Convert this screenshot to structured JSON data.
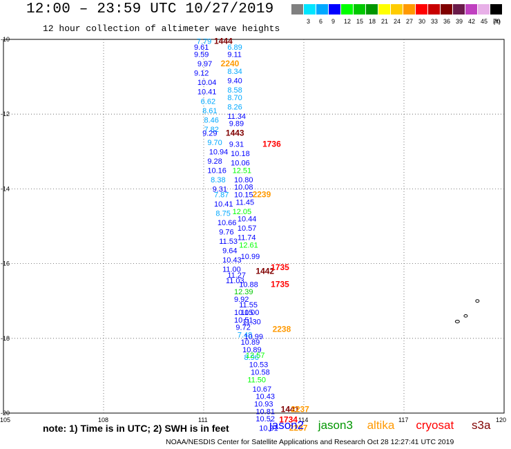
{
  "header": {
    "title": "12:00 – 23:59 UTC 10/27/2019",
    "subtitle": "12 hour collection of altimeter wave heights"
  },
  "legend": {
    "unit": "(ft)",
    "entries": [
      {
        "label": "",
        "color": "#808080"
      },
      {
        "label": "3",
        "color": "#00e5ff"
      },
      {
        "label": "6",
        "color": "#00a8ff"
      },
      {
        "label": "9",
        "color": "#0000ff"
      },
      {
        "label": "12",
        "color": "#00ff00"
      },
      {
        "label": "15",
        "color": "#00c800"
      },
      {
        "label": "18",
        "color": "#009600"
      },
      {
        "label": "21",
        "color": "#ffff00"
      },
      {
        "label": "24",
        "color": "#ffcc00"
      },
      {
        "label": "27",
        "color": "#ff9900"
      },
      {
        "label": "30",
        "color": "#ff0000"
      },
      {
        "label": "33",
        "color": "#c80000"
      },
      {
        "label": "36",
        "color": "#800000"
      },
      {
        "label": "39",
        "color": "#6a1b4a"
      },
      {
        "label": "42",
        "color": "#c040c0"
      },
      {
        "label": "45",
        "color": "#e8b0e8"
      },
      {
        "label": "70",
        "color": "#000000"
      }
    ]
  },
  "axes": {
    "lat_labels": [
      "-10",
      "-12",
      "-14",
      "-16",
      "-18",
      "-20"
    ],
    "lat_values": [
      -10,
      -12,
      -14,
      -16,
      -18,
      -20
    ],
    "lon_labels": [
      "105",
      "108",
      "111",
      "114",
      "117",
      "120"
    ],
    "lon_values": [
      105,
      108,
      111,
      114,
      117,
      120
    ]
  },
  "observations": [
    {
      "t": "7.79",
      "lon": 111.08,
      "lat": -10.05,
      "c": "#00a8ff"
    },
    {
      "t": "1444",
      "lon": 111.6,
      "lat": -10.05,
      "c": "#800000"
    },
    {
      "t": "9.61",
      "lon": 111.0,
      "lat": -10.2,
      "c": "#0000ff"
    },
    {
      "t": "6.89",
      "lon": 112.0,
      "lat": -10.2,
      "c": "#00a8ff"
    },
    {
      "t": "9.59",
      "lon": 111.0,
      "lat": -10.4,
      "c": "#0000ff"
    },
    {
      "t": "9.11",
      "lon": 112.0,
      "lat": -10.4,
      "c": "#0000ff"
    },
    {
      "t": "9.97",
      "lon": 111.1,
      "lat": -10.65,
      "c": "#0000ff"
    },
    {
      "t": "2240",
      "lon": 111.8,
      "lat": -10.65,
      "c": "#ff9900"
    },
    {
      "t": "9.12",
      "lon": 111.0,
      "lat": -10.9,
      "c": "#0000ff"
    },
    {
      "t": "8.34",
      "lon": 112.0,
      "lat": -10.85,
      "c": "#00a8ff"
    },
    {
      "t": "10.04",
      "lon": 111.1,
      "lat": -11.15,
      "c": "#0000ff"
    },
    {
      "t": "9.40",
      "lon": 112.0,
      "lat": -11.1,
      "c": "#0000ff"
    },
    {
      "t": "10.41",
      "lon": 111.1,
      "lat": -11.4,
      "c": "#0000ff"
    },
    {
      "t": "8.58",
      "lon": 112.0,
      "lat": -11.35,
      "c": "#00a8ff"
    },
    {
      "t": "6.62",
      "lon": 111.2,
      "lat": -11.65,
      "c": "#00a8ff"
    },
    {
      "t": "8.70",
      "lon": 112.0,
      "lat": -11.55,
      "c": "#00a8ff"
    },
    {
      "t": "8.61",
      "lon": 111.25,
      "lat": -11.9,
      "c": "#00a8ff"
    },
    {
      "t": "8.26",
      "lon": 112.0,
      "lat": -11.8,
      "c": "#00a8ff"
    },
    {
      "t": "8.46",
      "lon": 111.3,
      "lat": -12.15,
      "c": "#00a8ff"
    },
    {
      "t": "11.34",
      "lon": 112.0,
      "lat": -12.05,
      "c": "#0000ff"
    },
    {
      "t": "7.82",
      "lon": 111.3,
      "lat": -12.4,
      "c": "#00a8ff"
    },
    {
      "t": "9.89",
      "lon": 112.05,
      "lat": -12.25,
      "c": "#0000ff"
    },
    {
      "t": "9.29",
      "lon": 111.25,
      "lat": -12.5,
      "c": "#0000ff"
    },
    {
      "t": "1443",
      "lon": 111.95,
      "lat": -12.5,
      "c": "#800000"
    },
    {
      "t": "9.70",
      "lon": 111.4,
      "lat": -12.75,
      "c": "#00a8ff"
    },
    {
      "t": "9.31",
      "lon": 112.05,
      "lat": -12.8,
      "c": "#0000ff"
    },
    {
      "t": "1736",
      "lon": 113.05,
      "lat": -12.8,
      "c": "#ff0000"
    },
    {
      "t": "10.94",
      "lon": 111.45,
      "lat": -13.0,
      "c": "#0000ff"
    },
    {
      "t": "10.18",
      "lon": 112.1,
      "lat": -13.05,
      "c": "#0000ff"
    },
    {
      "t": "9.28",
      "lon": 111.4,
      "lat": -13.25,
      "c": "#0000ff"
    },
    {
      "t": "10.06",
      "lon": 112.1,
      "lat": -13.3,
      "c": "#0000ff"
    },
    {
      "t": "10.16",
      "lon": 111.4,
      "lat": -13.5,
      "c": "#0000ff"
    },
    {
      "t": "12.51",
      "lon": 112.15,
      "lat": -13.5,
      "c": "#00ff00"
    },
    {
      "t": "8.38",
      "lon": 111.5,
      "lat": -13.75,
      "c": "#00a8ff"
    },
    {
      "t": "10.80",
      "lon": 112.2,
      "lat": -13.75,
      "c": "#0000ff"
    },
    {
      "t": "9.31",
      "lon": 111.55,
      "lat": -14.0,
      "c": "#0000ff"
    },
    {
      "t": "10.08",
      "lon": 112.2,
      "lat": -13.95,
      "c": "#0000ff"
    },
    {
      "t": "7.87",
      "lon": 111.6,
      "lat": -14.15,
      "c": "#00a8ff"
    },
    {
      "t": "10.15",
      "lon": 112.2,
      "lat": -14.15,
      "c": "#0000ff"
    },
    {
      "t": "2239",
      "lon": 112.75,
      "lat": -14.15,
      "c": "#ff9900"
    },
    {
      "t": "10.41",
      "lon": 111.6,
      "lat": -14.4,
      "c": "#0000ff"
    },
    {
      "t": "11.45",
      "lon": 112.25,
      "lat": -14.35,
      "c": "#0000ff"
    },
    {
      "t": "8.75",
      "lon": 111.65,
      "lat": -14.65,
      "c": "#00a8ff"
    },
    {
      "t": "12.05",
      "lon": 112.15,
      "lat": -14.6,
      "c": "#00ff00"
    },
    {
      "t": "10.66",
      "lon": 111.7,
      "lat": -14.9,
      "c": "#0000ff"
    },
    {
      "t": "10.44",
      "lon": 112.3,
      "lat": -14.8,
      "c": "#0000ff"
    },
    {
      "t": "9.76",
      "lon": 111.75,
      "lat": -15.15,
      "c": "#0000ff"
    },
    {
      "t": "10.57",
      "lon": 112.3,
      "lat": -15.05,
      "c": "#0000ff"
    },
    {
      "t": "11.53",
      "lon": 111.75,
      "lat": -15.4,
      "c": "#0000ff"
    },
    {
      "t": "11.74",
      "lon": 112.3,
      "lat": -15.3,
      "c": "#0000ff"
    },
    {
      "t": "9.64",
      "lon": 111.85,
      "lat": -15.65,
      "c": "#0000ff"
    },
    {
      "t": "12.61",
      "lon": 112.35,
      "lat": -15.5,
      "c": "#00ff00"
    },
    {
      "t": "10.43",
      "lon": 111.85,
      "lat": -15.9,
      "c": "#0000ff"
    },
    {
      "t": "10.99",
      "lon": 112.4,
      "lat": -15.8,
      "c": "#0000ff"
    },
    {
      "t": "11.00",
      "lon": 111.85,
      "lat": -16.15,
      "c": "#0000ff"
    },
    {
      "t": "1442",
      "lon": 112.85,
      "lat": -16.2,
      "c": "#800000"
    },
    {
      "t": "1735",
      "lon": 113.3,
      "lat": -16.1,
      "c": "#ff0000"
    },
    {
      "t": "11.27",
      "lon": 112.0,
      "lat": -16.3,
      "c": "#0000ff"
    },
    {
      "t": "11.03",
      "lon": 111.95,
      "lat": -16.45,
      "c": "#0000ff"
    },
    {
      "t": "10.88",
      "lon": 112.35,
      "lat": -16.55,
      "c": "#0000ff"
    },
    {
      "t": "1735",
      "lon": 113.3,
      "lat": -16.55,
      "c": "#ff0000"
    },
    {
      "t": "12.39",
      "lon": 112.2,
      "lat": -16.75,
      "c": "#00c800"
    },
    {
      "t": "9.92",
      "lon": 112.2,
      "lat": -16.95,
      "c": "#0000ff"
    },
    {
      "t": "11.55",
      "lon": 112.35,
      "lat": -17.1,
      "c": "#0000ff"
    },
    {
      "t": "10.05",
      "lon": 112.2,
      "lat": -17.3,
      "c": "#0000ff"
    },
    {
      "t": "11.00",
      "lon": 112.4,
      "lat": -17.3,
      "c": "#0000ff"
    },
    {
      "t": "10.51",
      "lon": 112.2,
      "lat": -17.5,
      "c": "#0000ff"
    },
    {
      "t": "11.30",
      "lon": 112.45,
      "lat": -17.55,
      "c": "#0000ff"
    },
    {
      "t": "9.72",
      "lon": 112.25,
      "lat": -17.7,
      "c": "#0000ff"
    },
    {
      "t": "2238",
      "lon": 113.35,
      "lat": -17.75,
      "c": "#ff9900"
    },
    {
      "t": "7.48",
      "lon": 112.3,
      "lat": -17.9,
      "c": "#00a8ff"
    },
    {
      "t": "10.99",
      "lon": 112.5,
      "lat": -17.95,
      "c": "#0000ff"
    },
    {
      "t": "10.89",
      "lon": 112.4,
      "lat": -18.1,
      "c": "#0000ff"
    },
    {
      "t": "10.89",
      "lon": 112.45,
      "lat": -18.3,
      "c": "#0000ff"
    },
    {
      "t": "8.96",
      "lon": 112.5,
      "lat": -18.5,
      "c": "#00a8ff"
    },
    {
      "t": "12.57",
      "lon": 112.55,
      "lat": -18.45,
      "c": "#00ff00"
    },
    {
      "t": "10.53",
      "lon": 112.65,
      "lat": -18.7,
      "c": "#0000ff"
    },
    {
      "t": "10.58",
      "lon": 112.7,
      "lat": -18.9,
      "c": "#0000ff"
    },
    {
      "t": "11.50",
      "lon": 112.6,
      "lat": -19.1,
      "c": "#00ff00"
    },
    {
      "t": "10.67",
      "lon": 112.75,
      "lat": -19.35,
      "c": "#0000ff"
    },
    {
      "t": "10.43",
      "lon": 112.85,
      "lat": -19.55,
      "c": "#0000ff"
    },
    {
      "t": "10.93",
      "lon": 112.8,
      "lat": -19.75,
      "c": "#0000ff"
    },
    {
      "t": "10.81",
      "lon": 112.85,
      "lat": -19.95,
      "c": "#0000ff"
    },
    {
      "t": "1441",
      "lon": 113.6,
      "lat": -19.9,
      "c": "#800000"
    },
    {
      "t": "2237",
      "lon": 113.9,
      "lat": -19.9,
      "c": "#ff9900"
    },
    {
      "t": "10.52",
      "lon": 112.85,
      "lat": -20.15,
      "c": "#0000ff"
    },
    {
      "t": "1734",
      "lon": 113.55,
      "lat": -20.18,
      "c": "#ff0000"
    },
    {
      "t": "10.91",
      "lon": 112.95,
      "lat": -20.4,
      "c": "#0000ff"
    },
    {
      "t": "2237",
      "lon": 113.85,
      "lat": -20.4,
      "c": "#ff9900"
    }
  ],
  "footer": {
    "note": "note: 1) Time is in UTC; 2) SWH is in feet",
    "credit": "NOAA/NESDIS Center for Satellite Applications and Research   Oct 28 12:27:41 UTC 2019"
  },
  "satellites": [
    {
      "name": "jason2",
      "color": "#0000ff"
    },
    {
      "name": "jason3",
      "color": "#009600"
    },
    {
      "name": "altika",
      "color": "#ff9900"
    },
    {
      "name": "cryosat",
      "color": "#ff0000"
    },
    {
      "name": "s3a",
      "color": "#800000"
    }
  ]
}
